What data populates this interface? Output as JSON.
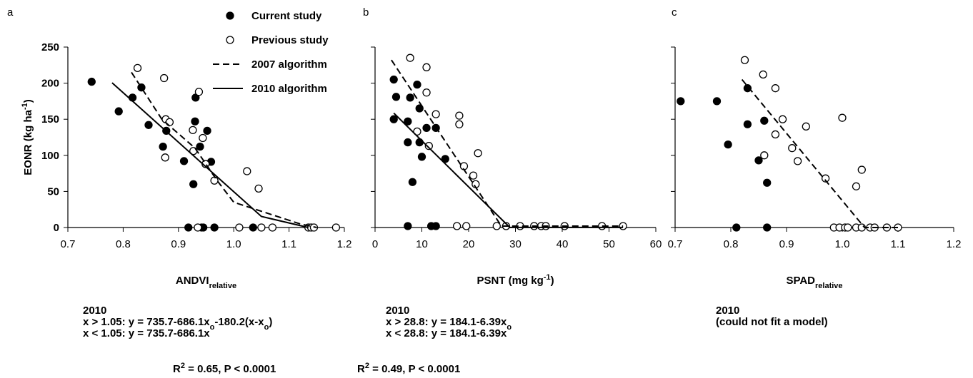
{
  "chart_data": [
    {
      "type": "scatter",
      "panel": "a",
      "xlabel": [
        {
          "t": "ANDVI"
        },
        {
          "sub": "relative"
        }
      ],
      "ylabel": [
        {
          "t": "EONR (kg ha"
        },
        {
          "sup": "-1"
        },
        {
          "t": ")"
        }
      ],
      "xlim": [
        0.7,
        1.2
      ],
      "xticks": [
        0.7,
        0.8,
        0.9,
        {
          "value": 1,
          "label": "1.0"
        },
        1.1,
        1.2
      ],
      "ylim": [
        0,
        250
      ],
      "yticks": [
        0,
        50,
        100,
        150,
        200,
        250
      ],
      "ytick_labels": true,
      "legend": "top-right",
      "series": [
        {
          "name": "Current study",
          "marker": "filled",
          "color": "#000000",
          "x": [
            0.743,
            0.792,
            0.817,
            0.833,
            0.846,
            0.872,
            0.878,
            0.91,
            0.927,
            0.93,
            0.931,
            0.939,
            0.952,
            0.959,
            0.918,
            0.942,
            0.945,
            0.965,
            1.035
          ],
          "values": [
            202,
            161,
            180,
            194,
            142,
            112,
            134,
            92,
            60,
            147,
            180,
            112,
            134,
            91,
            0,
            0,
            0,
            0,
            0
          ]
        },
        {
          "name": "Previous study",
          "marker": "open",
          "color": "#000000",
          "x": [
            0.826,
            0.874,
            0.877,
            0.884,
            0.876,
            0.926,
            0.937,
            0.944,
            0.949,
            0.927,
            0.965,
            1.024,
            1.045,
            0.935,
            1.01,
            1.05,
            1.07,
            1.135,
            1.14,
            1.145,
            1.185
          ],
          "values": [
            221,
            207,
            150,
            146,
            97,
            135,
            188,
            124,
            88,
            106,
            65,
            78,
            54,
            0,
            0,
            0,
            0,
            0,
            0,
            0,
            0
          ]
        },
        {
          "name": "2007 algorithm",
          "line": "dashed",
          "color": "#000000",
          "x": [
            0.815,
            0.87,
            0.93,
            0.97,
            1.0,
            1.04,
            1.12,
            1.15
          ],
          "values": [
            215,
            150,
            110,
            65,
            35,
            25,
            5,
            0
          ]
        },
        {
          "name": "2010 algorithm",
          "line": "solid",
          "color": "#000000",
          "x": [
            0.78,
            1.05,
            1.135
          ],
          "values": [
            200.5,
            15.3,
            0
          ]
        }
      ],
      "notes": [
        [
          {
            "t": "2010"
          }
        ],
        [
          {
            "t": "x > 1.05: y = 735.7-686.1x"
          },
          {
            "sub": "o"
          },
          {
            "t": "-180.2(x-x"
          },
          {
            "sub": "o"
          },
          {
            "t": ")"
          }
        ],
        [
          {
            "t": "x < 1.05: y = 735.7-686.1x"
          }
        ]
      ],
      "stat": [
        {
          "t": "R"
        },
        {
          "sup": "2"
        },
        {
          "t": " = 0.65, P < 0.0001"
        }
      ]
    },
    {
      "type": "scatter",
      "panel": "b",
      "xlabel": [
        {
          "t": "PSNT (mg kg"
        },
        {
          "sup": "-1"
        },
        {
          "t": ")"
        }
      ],
      "xlim": [
        0,
        60
      ],
      "xticks": [
        0,
        10,
        20,
        30,
        40,
        50,
        60
      ],
      "ylim": [
        0,
        250
      ],
      "yticks": [
        0,
        50,
        100,
        150,
        200,
        250
      ],
      "ytick_labels": false,
      "series": [
        {
          "marker": "filled",
          "color": "#000000",
          "x": [
            4,
            4.5,
            7.5,
            4,
            9,
            9.5,
            7,
            11,
            13,
            7,
            9.5,
            10,
            15,
            8,
            7,
            12,
            13
          ],
          "values": [
            205,
            181,
            180,
            150,
            198,
            165,
            147,
            138,
            138,
            118,
            118,
            98,
            95,
            63,
            2,
            2,
            2
          ]
        },
        {
          "marker": "open",
          "color": "#000000",
          "x": [
            7.5,
            11,
            11,
            13,
            18,
            18,
            9,
            11.5,
            19,
            21,
            21.5,
            22,
            17.5,
            19.5,
            26,
            28,
            31,
            34,
            35.5,
            36.5,
            40.5,
            48.5,
            53
          ],
          "values": [
            235,
            222,
            187,
            157,
            155,
            143,
            133,
            113,
            85,
            72,
            60,
            103,
            2,
            2,
            2,
            2,
            2,
            2,
            2,
            2,
            2,
            2,
            2
          ]
        },
        {
          "line": "dashed",
          "color": "#000000",
          "x": [
            3.5,
            27,
            53
          ],
          "values": [
            232,
            2,
            2
          ]
        },
        {
          "line": "solid",
          "color": "#000000",
          "x": [
            4,
            28.8,
            53
          ],
          "values": [
            158.5,
            0.1,
            0.1
          ]
        }
      ],
      "notes": [
        [
          {
            "t": "2010"
          }
        ],
        [
          {
            "t": "x > 28.8: y = 184.1-6.39x"
          },
          {
            "sub": "o"
          }
        ],
        [
          {
            "t": "x < 28.8: y = 184.1-6.39x"
          }
        ]
      ],
      "stat": [
        {
          "t": "R"
        },
        {
          "sup": "2"
        },
        {
          "t": " = 0.49, P < 0.0001"
        }
      ]
    },
    {
      "type": "scatter",
      "panel": "c",
      "xlabel": [
        {
          "t": "SPAD"
        },
        {
          "sub": "relative"
        }
      ],
      "xlim": [
        0.7,
        1.2
      ],
      "xticks": [
        0.7,
        0.8,
        0.9,
        {
          "value": 1,
          "label": "1.0"
        },
        1.1,
        1.2
      ],
      "ylim": [
        0,
        250
      ],
      "yticks": [
        0,
        50,
        100,
        150,
        200,
        250
      ],
      "ytick_labels": false,
      "series": [
        {
          "marker": "filled",
          "color": "#000000",
          "x": [
            0.71,
            0.775,
            0.795,
            0.83,
            0.83,
            0.86,
            0.85,
            0.865,
            0.81,
            0.865
          ],
          "values": [
            175,
            175,
            115,
            193,
            143,
            148,
            93,
            62,
            0,
            0
          ]
        },
        {
          "marker": "open",
          "color": "#000000",
          "x": [
            0.825,
            0.858,
            0.88,
            0.88,
            0.893,
            0.91,
            0.92,
            0.935,
            0.86,
            0.97,
            1.0,
            1.025,
            1.035,
            0.985,
            0.995,
            1.005,
            1.01,
            1.025,
            1.035,
            1.05,
            1.058,
            1.08,
            1.1
          ],
          "values": [
            232,
            212,
            193,
            129,
            150,
            110,
            92,
            140,
            100,
            68,
            152,
            57,
            80,
            0,
            0,
            0,
            0,
            0,
            0,
            0,
            0,
            0,
            0
          ]
        },
        {
          "line": "dashed",
          "color": "#000000",
          "x": [
            0.82,
            1.04,
            1.1
          ],
          "values": [
            205,
            0,
            0
          ]
        }
      ],
      "notes": [
        [
          {
            "t": "2010"
          }
        ],
        [
          {
            "t": "(could not fit a model)"
          }
        ]
      ]
    }
  ]
}
